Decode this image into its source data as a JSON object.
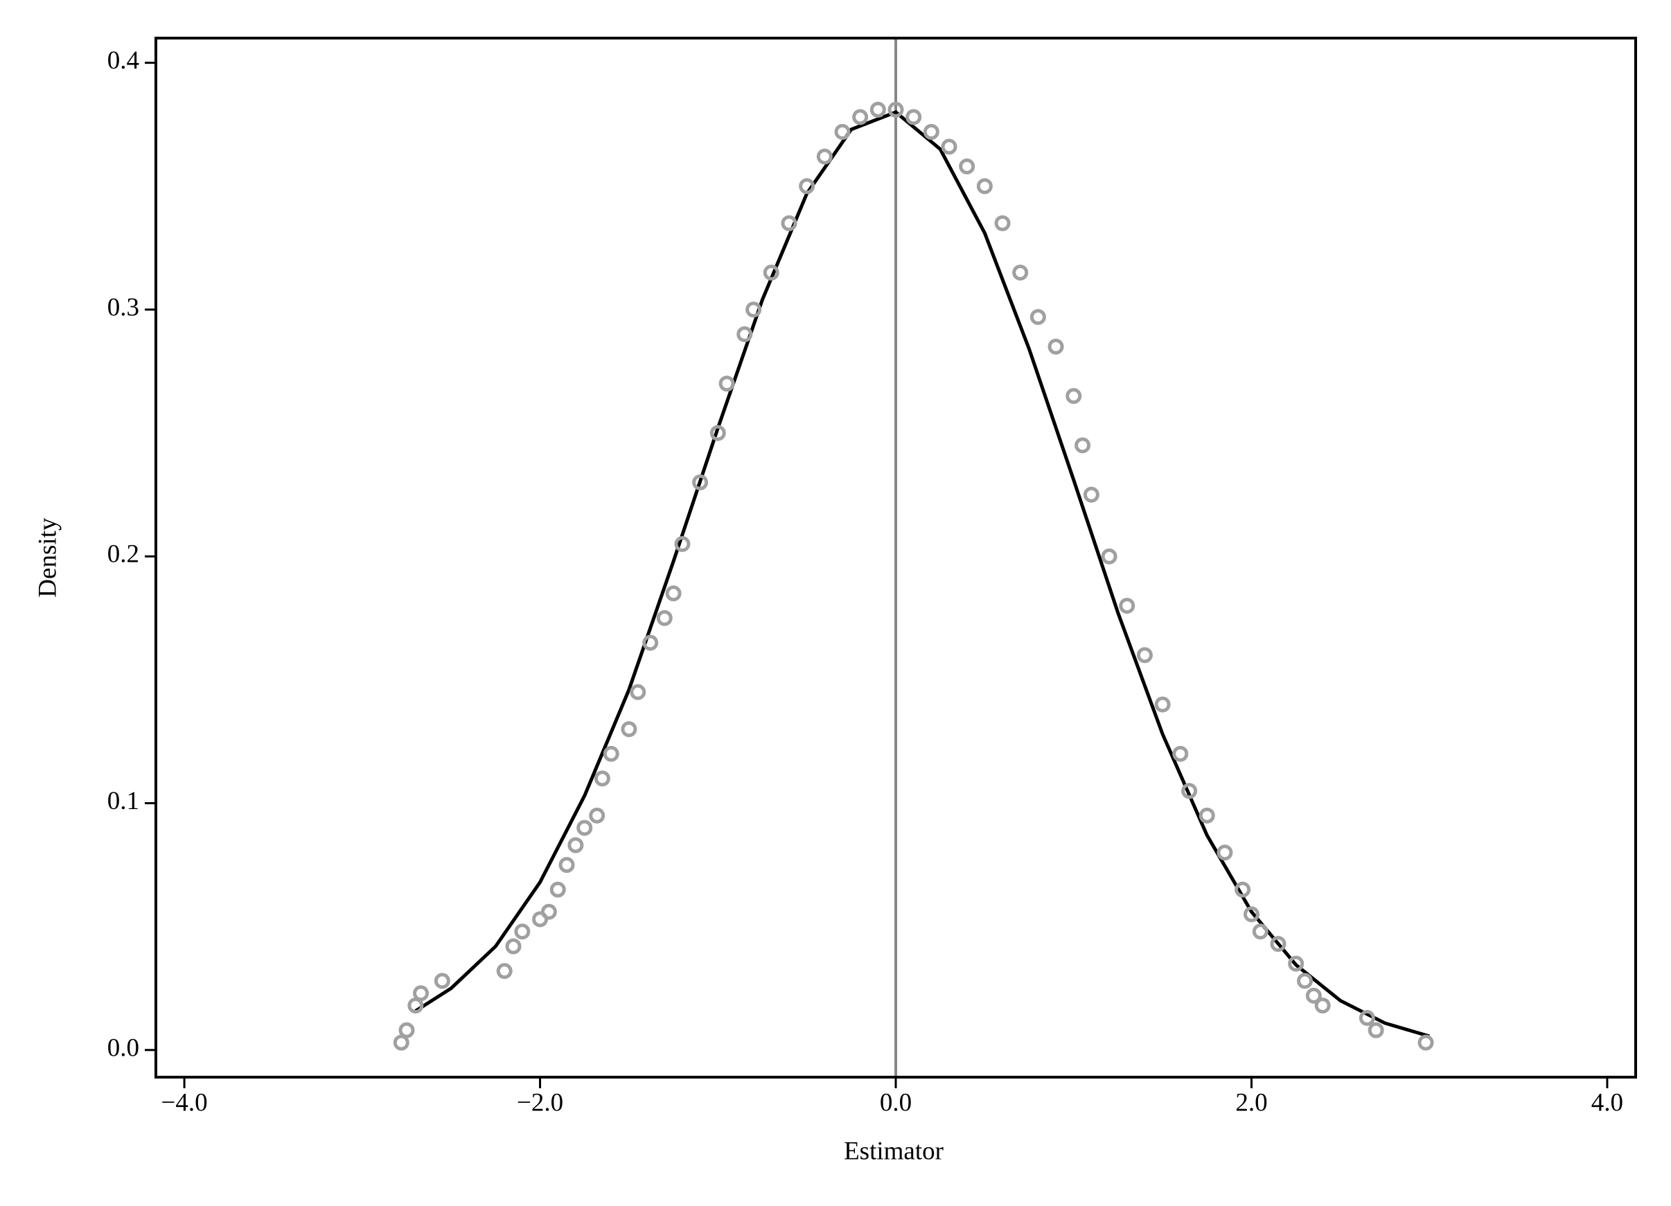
{
  "chart_data": {
    "type": "scatter",
    "x_label": "Estimator",
    "y_label": "Density",
    "xlim": [
      -4.16,
      4.16
    ],
    "ylim": [
      -0.011,
      0.41
    ],
    "xticks": [
      {
        "value": -4,
        "label": "−4.0"
      },
      {
        "value": -2,
        "label": "−2.0"
      },
      {
        "value": 0,
        "label": "0.0"
      },
      {
        "value": 2,
        "label": "2.0"
      },
      {
        "value": 4,
        "label": "4.0"
      }
    ],
    "yticks": [
      {
        "value": 0,
        "label": "0.0"
      },
      {
        "value": 0.1,
        "label": "0.1"
      },
      {
        "value": 0.2,
        "label": "0.2"
      },
      {
        "value": 0.3,
        "label": "0.3"
      },
      {
        "value": 0.4,
        "label": "0.4"
      }
    ],
    "vline": 0,
    "vline_color": "#888888",
    "series": [
      {
        "type": "scatter",
        "color": "#a0a0a0",
        "x": [
          -2.78,
          -2.75,
          -2.7,
          -2.67,
          -2.55,
          -2.2,
          -2.15,
          -2.1,
          -2.0,
          -1.95,
          -1.9,
          -1.85,
          -1.8,
          -1.75,
          -1.68,
          -1.65,
          -1.6,
          -1.5,
          -1.45,
          -1.38,
          -1.3,
          -1.25,
          -1.2,
          -1.1,
          -1.0,
          -0.95,
          -0.85,
          -0.8,
          -0.7,
          -0.6,
          -0.5,
          -0.4,
          -0.3,
          -0.2,
          -0.1,
          0,
          0.1,
          0.2,
          0.3,
          0.4,
          0.5,
          0.6,
          0.7,
          0.8,
          0.9,
          1.0,
          1.05,
          1.1,
          1.2,
          1.3,
          1.4,
          1.5,
          1.6,
          1.65,
          1.75,
          1.85,
          1.95,
          2.0,
          2.05,
          2.15,
          2.25,
          2.3,
          2.35,
          2.4,
          2.65,
          2.7,
          2.98
        ],
        "values": [
          0.003,
          0.008,
          0.018,
          0.023,
          0.028,
          0.032,
          0.042,
          0.048,
          0.053,
          0.056,
          0.065,
          0.075,
          0.083,
          0.09,
          0.095,
          0.11,
          0.12,
          0.13,
          0.145,
          0.165,
          0.175,
          0.185,
          0.205,
          0.23,
          0.25,
          0.27,
          0.29,
          0.3,
          0.315,
          0.335,
          0.35,
          0.362,
          0.372,
          0.378,
          0.381,
          0.381,
          0.378,
          0.372,
          0.366,
          0.358,
          0.35,
          0.335,
          0.315,
          0.297,
          0.285,
          0.265,
          0.245,
          0.225,
          0.2,
          0.18,
          0.16,
          0.14,
          0.12,
          0.105,
          0.095,
          0.08,
          0.065,
          0.055,
          0.048,
          0.043,
          0.035,
          0.028,
          0.022,
          0.018,
          0.013,
          0.008,
          0.003
        ]
      },
      {
        "type": "line",
        "color": "#000000",
        "x": [
          -2.7,
          -2.5,
          -2.25,
          -2.0,
          -1.75,
          -1.5,
          -1.25,
          -1.0,
          -0.75,
          -0.5,
          -0.25,
          0,
          0.25,
          0.5,
          0.75,
          1.0,
          1.25,
          1.5,
          1.75,
          2.0,
          2.25,
          2.5,
          2.75,
          3.0
        ],
        "values": [
          0.0158,
          0.025,
          0.042,
          0.068,
          0.103,
          0.146,
          0.198,
          0.252,
          0.304,
          0.347,
          0.373,
          0.38,
          0.365,
          0.331,
          0.284,
          0.231,
          0.177,
          0.128,
          0.087,
          0.056,
          0.0345,
          0.02,
          0.0109,
          0.0056
        ]
      }
    ]
  }
}
